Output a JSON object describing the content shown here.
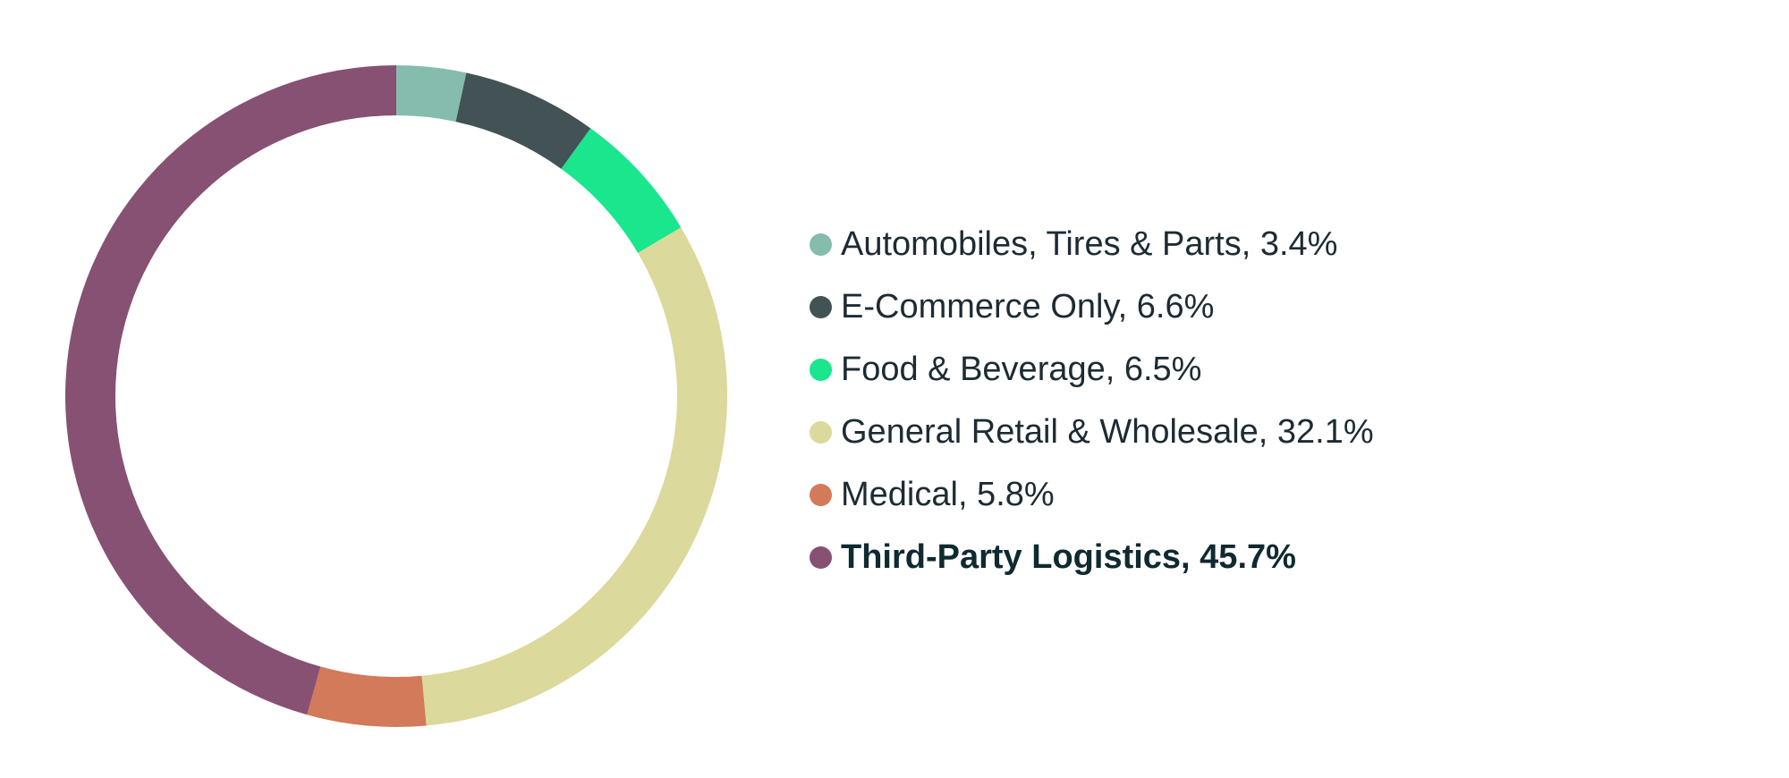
{
  "chart_data": {
    "type": "pie",
    "categories": [
      "Automobiles, Tires & Parts",
      "E-Commerce Only",
      "Food & Beverage",
      "General Retail & Wholesale",
      "Medical",
      "Third-Party Logistics"
    ],
    "values": [
      3.4,
      6.6,
      6.5,
      32.1,
      5.8,
      45.7
    ],
    "unit": "%",
    "colors": [
      "#85bcad",
      "#435254",
      "#19e68d",
      "#dbd99b",
      "#d27a59",
      "#865173"
    ],
    "legend_labels": [
      "Automobiles, Tires & Parts, 3.4%",
      "E-Commerce Only, 6.6%",
      "Food & Beverage, 6.5%",
      "General Retail & Wholesale, 32.1%",
      "Medical, 5.8%",
      "Third-Party Logistics, 45.7%"
    ],
    "emphasized_index": 5,
    "donut": true,
    "legend_position": "right",
    "grid": false
  }
}
